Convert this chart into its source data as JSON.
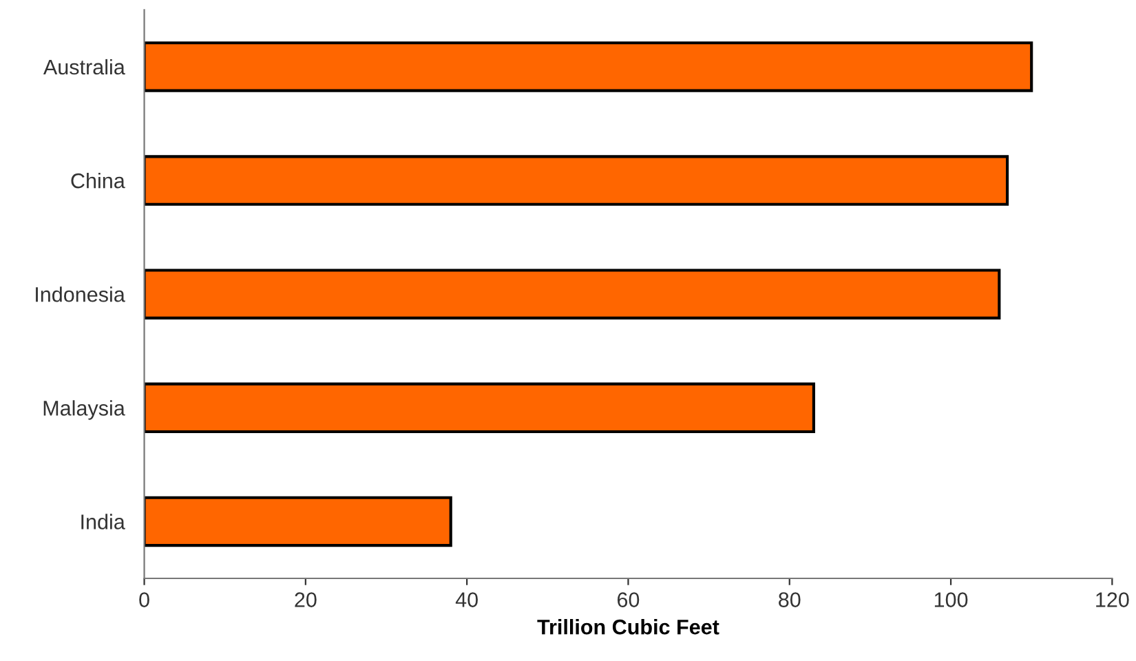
{
  "chart_data": {
    "type": "bar",
    "orientation": "horizontal",
    "xlabel": "Trillion Cubic Feet",
    "categories": [
      "Australia",
      "China",
      "Indonesia",
      "Malaysia",
      "India"
    ],
    "values": [
      110,
      107,
      106,
      83,
      38
    ],
    "color": "#ff6600",
    "xlim": [
      0,
      120
    ],
    "xticks": [
      0,
      20,
      40,
      60,
      80,
      100,
      120
    ],
    "grid": false
  }
}
